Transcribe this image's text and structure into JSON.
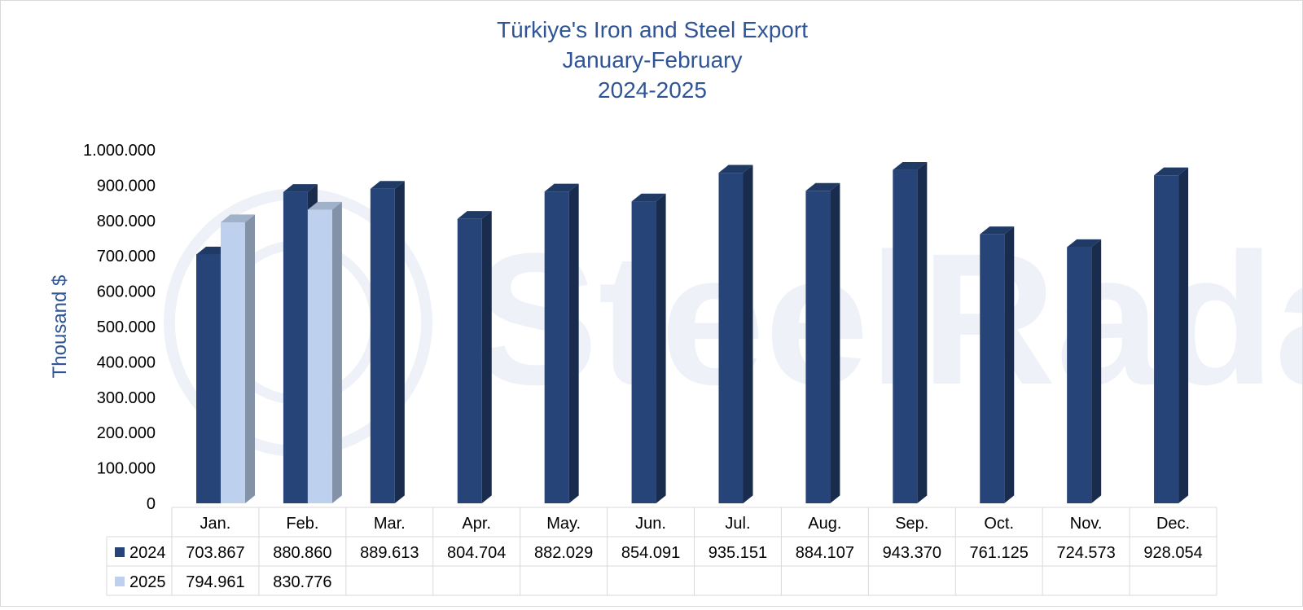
{
  "chart_data": {
    "type": "bar",
    "title": [
      "Türkiye's Iron and Steel Export",
      "January-February",
      "2024-2025"
    ],
    "ylabel": "Thousand $",
    "ylim": [
      0,
      1000000
    ],
    "yticks": [
      "0",
      "100.000",
      "200.000",
      "300.000",
      "400.000",
      "500.000",
      "600.000",
      "700.000",
      "800.000",
      "900.000",
      "1.000.000"
    ],
    "categories": [
      "Jan.",
      "Feb.",
      "Mar.",
      "Apr.",
      "May.",
      "Jun.",
      "Jul.",
      "Aug.",
      "Sep.",
      "Oct.",
      "Nov.",
      "Dec."
    ],
    "series": [
      {
        "name": "2024",
        "color": "#264478",
        "values": [
          703867,
          880860,
          889613,
          804704,
          882029,
          854091,
          935151,
          884107,
          943370,
          761125,
          724573,
          928054
        ],
        "labels": [
          "703.867",
          "880.860",
          "889.613",
          "804.704",
          "882.029",
          "854.091",
          "935.151",
          "884.107",
          "943.370",
          "761.125",
          "724.573",
          "928.054"
        ]
      },
      {
        "name": "2025",
        "color": "#bdd0ee",
        "values": [
          794961,
          830776,
          null,
          null,
          null,
          null,
          null,
          null,
          null,
          null,
          null,
          null
        ],
        "labels": [
          "794.961",
          "830.776",
          "",
          "",
          "",
          "",
          "",
          "",
          "",
          "",
          "",
          ""
        ]
      }
    ],
    "grid": false,
    "legend": "data-table-bottom"
  },
  "watermark": "SteelRadar"
}
